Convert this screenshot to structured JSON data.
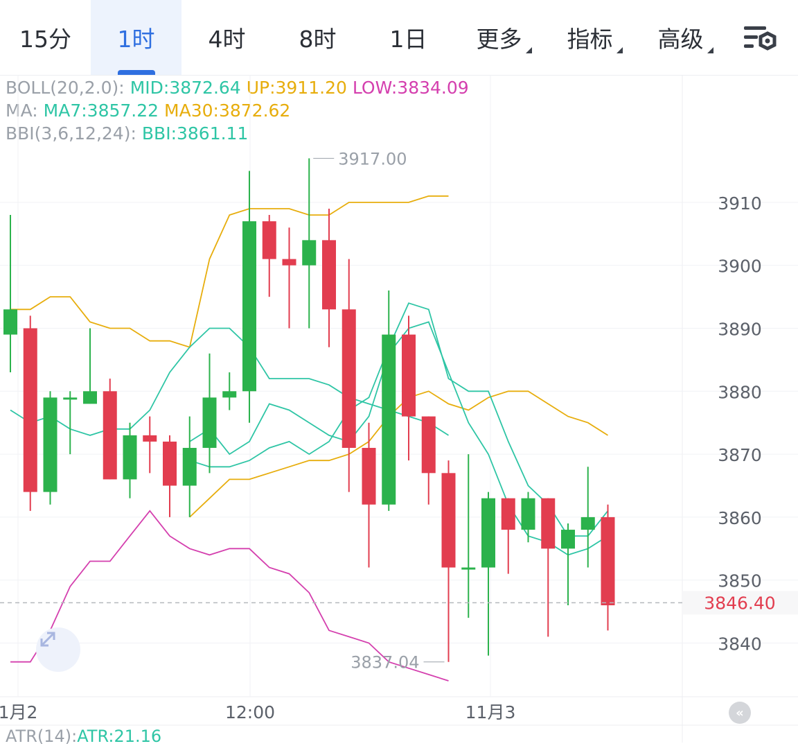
{
  "tabs": [
    {
      "label": "15分",
      "active": false,
      "dropdown": false
    },
    {
      "label": "1时",
      "active": true,
      "dropdown": false
    },
    {
      "label": "4时",
      "active": false,
      "dropdown": false
    },
    {
      "label": "8时",
      "active": false,
      "dropdown": false
    },
    {
      "label": "1日",
      "active": false,
      "dropdown": false
    },
    {
      "label": "更多",
      "active": false,
      "dropdown": true
    },
    {
      "label": "指标",
      "active": false,
      "dropdown": true
    },
    {
      "label": "高级",
      "active": false,
      "dropdown": true
    }
  ],
  "settings_icon": "chart-settings-icon",
  "legend": {
    "boll": {
      "label": "BOLL(20,2.0):",
      "mid": "MID:3872.64",
      "up": "UP:3911.20",
      "low": "LOW:3834.09"
    },
    "ma": {
      "label": "MA:",
      "ma7": "MA7:3857.22",
      "ma30": "MA30:3872.62"
    },
    "bbi": {
      "label": "BBI(3,6,12,24):",
      "bbi": "BBI:3861.11"
    }
  },
  "atr": {
    "label": "ATR(14):",
    "value": "ATR:21.16"
  },
  "colors": {
    "up": "#2bb24c",
    "down": "#e23d4f",
    "mid": "#2ec5a5",
    "upper": "#e7ad0c",
    "lower": "#d43fae",
    "ma7": "#2ec5a5",
    "ma30": "#e7ad0c",
    "bbi": "#2ec5a5",
    "active": "#2f6fe0"
  },
  "chart_data": {
    "type": "candlestick",
    "y_ticks": [
      3840,
      3850,
      3860,
      3870,
      3880,
      3890,
      3900,
      3910
    ],
    "x_labels": [
      "1月2",
      "12:00",
      "11月3"
    ],
    "last_price": "3846.40",
    "max_label": "3917.00",
    "min_label": "3837.04",
    "candles": [
      {
        "o": 3889,
        "c": 3893,
        "h": 3908,
        "l": 3883
      },
      {
        "o": 3890,
        "c": 3864,
        "h": 3892,
        "l": 3861
      },
      {
        "o": 3864,
        "c": 3879,
        "h": 3880,
        "l": 3862
      },
      {
        "o": 3879,
        "c": 3879,
        "h": 3880,
        "l": 3870
      },
      {
        "o": 3878,
        "c": 3880,
        "h": 3890,
        "l": 3878
      },
      {
        "o": 3880,
        "c": 3866,
        "h": 3882,
        "l": 3866
      },
      {
        "o": 3866,
        "c": 3873,
        "h": 3875,
        "l": 3863
      },
      {
        "o": 3873,
        "c": 3872,
        "h": 3876,
        "l": 3867
      },
      {
        "o": 3872,
        "c": 3865,
        "h": 3873,
        "l": 3860
      },
      {
        "o": 3865,
        "c": 3871,
        "h": 3876,
        "l": 3860
      },
      {
        "o": 3871,
        "c": 3879,
        "h": 3886,
        "l": 3867
      },
      {
        "o": 3879,
        "c": 3880,
        "h": 3883,
        "l": 3877
      },
      {
        "o": 3880,
        "c": 3907,
        "h": 3915,
        "l": 3875
      },
      {
        "o": 3907,
        "c": 3901,
        "h": 3908,
        "l": 3895
      },
      {
        "o": 3901,
        "c": 3900,
        "h": 3906,
        "l": 3890
      },
      {
        "o": 3900,
        "c": 3904,
        "h": 3917,
        "l": 3890
      },
      {
        "o": 3904,
        "c": 3893,
        "h": 3909,
        "l": 3887
      },
      {
        "o": 3893,
        "c": 3871,
        "h": 3901,
        "l": 3864
      },
      {
        "o": 3871,
        "c": 3862,
        "h": 3875,
        "l": 3852
      },
      {
        "o": 3862,
        "c": 3889,
        "h": 3896,
        "l": 3861
      },
      {
        "o": 3889,
        "c": 3876,
        "h": 3892,
        "l": 3869
      },
      {
        "o": 3876,
        "c": 3867,
        "h": 3876,
        "l": 3862
      },
      {
        "o": 3867,
        "c": 3852,
        "h": 3869,
        "l": 3837
      },
      {
        "o": 3852,
        "c": 3852,
        "h": 3870,
        "l": 3844
      },
      {
        "o": 3852,
        "c": 3863,
        "h": 3864,
        "l": 3838
      },
      {
        "o": 3863,
        "c": 3858,
        "h": 3863,
        "l": 3851
      },
      {
        "o": 3858,
        "c": 3863,
        "h": 3864,
        "l": 3856
      },
      {
        "o": 3863,
        "c": 3855,
        "h": 3863,
        "l": 3841
      },
      {
        "o": 3855,
        "c": 3858,
        "h": 3859,
        "l": 3846
      },
      {
        "o": 3858,
        "c": 3860,
        "h": 3868,
        "l": 3852
      },
      {
        "o": 3860,
        "c": 3846,
        "h": 3862,
        "l": 3842
      }
    ],
    "boll_up": [
      3893,
      3893,
      3895,
      3895,
      3891,
      3890,
      3890,
      3888,
      3888,
      3887,
      3901,
      3908,
      3909,
      3909,
      3909,
      3908,
      3908,
      3910,
      3910,
      3910,
      3910,
      3911,
      3911
    ],
    "boll_mid": [
      3877,
      3875,
      3876,
      3874,
      3873,
      3874,
      3874,
      3877,
      3883,
      3887,
      3890,
      3890,
      3887,
      3882,
      3882,
      3882,
      3881,
      3879,
      3878,
      3877,
      3876,
      3875,
      3873
    ],
    "boll_low": [
      3837,
      3837,
      3842,
      3849,
      3853,
      3853,
      3857,
      3861,
      3857,
      3855,
      3854,
      3855,
      3855,
      3852,
      3851,
      3848,
      3842,
      3841,
      3840,
      3837,
      3836,
      3835,
      3834
    ],
    "ma7": [
      3872,
      3874,
      3870,
      3872,
      3878,
      3877,
      3875,
      3873,
      3872,
      3876,
      3886,
      3890,
      3891,
      3883,
      3875,
      3870,
      3862,
      3857,
      3856,
      3854,
      3855,
      3857
    ],
    "ma30": [
      3860,
      3863,
      3866,
      3866,
      3867,
      3868,
      3869,
      3869,
      3870,
      3872,
      3876,
      3879,
      3880,
      3878,
      3877,
      3879,
      3880,
      3880,
      3878,
      3876,
      3875,
      3873
    ],
    "bbi": [
      3869,
      3868,
      3868,
      3869,
      3871,
      3872,
      3870,
      3872,
      3877,
      3879,
      3887,
      3894,
      3893,
      3882,
      3880,
      3880,
      3872,
      3865,
      3862,
      3857,
      3857,
      3861
    ]
  }
}
